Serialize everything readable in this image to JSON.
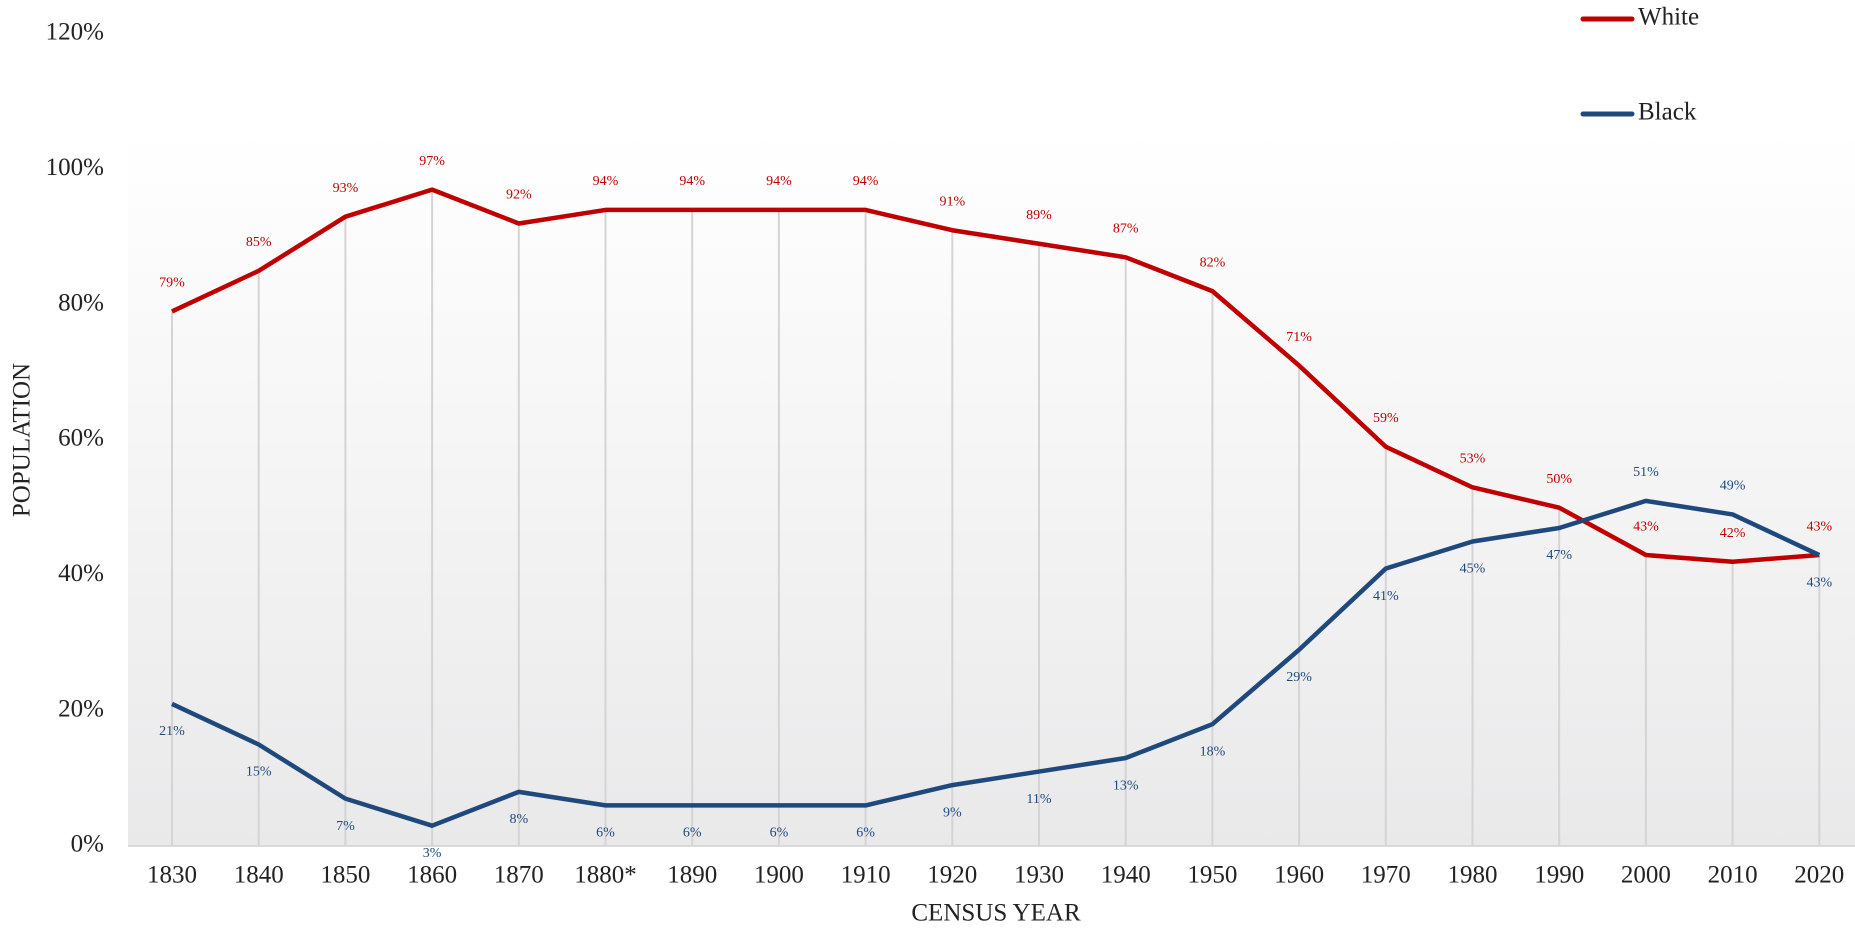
{
  "chart_data": {
    "type": "line",
    "xlabel": "CENSUS YEAR",
    "ylabel": "POPULATION",
    "categories": [
      "1830",
      "1840",
      "1850",
      "1860",
      "1870",
      "1880*",
      "1890",
      "1900",
      "1910",
      "1920",
      "1930",
      "1940",
      "1950",
      "1960",
      "1970",
      "1980",
      "1990",
      "2000",
      "2010",
      "2020"
    ],
    "series": [
      {
        "name": "White",
        "color": "#c00000",
        "values": [
          79,
          85,
          93,
          97,
          92,
          94,
          94,
          94,
          94,
          91,
          89,
          87,
          82,
          71,
          59,
          53,
          50,
          43,
          42,
          43
        ],
        "value_labels": [
          "79%",
          "85%",
          "93%",
          "97%",
          "92%",
          "94%",
          "94%",
          "94%",
          "94%",
          "91%",
          "89%",
          "87%",
          "82%",
          "71%",
          "59%",
          "53%",
          "50%",
          "43%",
          "42%",
          "43%"
        ]
      },
      {
        "name": "Black",
        "color": "#1f497d",
        "values": [
          21,
          15,
          7,
          3,
          8,
          6,
          6,
          6,
          6,
          9,
          11,
          13,
          18,
          29,
          41,
          45,
          47,
          51,
          49,
          43
        ],
        "value_labels": [
          "21%",
          "15%",
          "7%",
          "3%",
          "8%",
          "6%",
          "6%",
          "6%",
          "6%",
          "9%",
          "11%",
          "13%",
          "18%",
          "29%",
          "41%",
          "45%",
          "47%",
          "51%",
          "49%",
          "43%"
        ]
      }
    ],
    "ylim": [
      0,
      120
    ],
    "yticks": [
      {
        "value": 0,
        "label": "0%"
      },
      {
        "value": 20,
        "label": "20%"
      },
      {
        "value": 40,
        "label": "40%"
      },
      {
        "value": 60,
        "label": "60%"
      },
      {
        "value": 80,
        "label": "80%"
      },
      {
        "value": 100,
        "label": "100%"
      },
      {
        "value": 120,
        "label": "120%"
      }
    ],
    "legend": "top-right"
  }
}
